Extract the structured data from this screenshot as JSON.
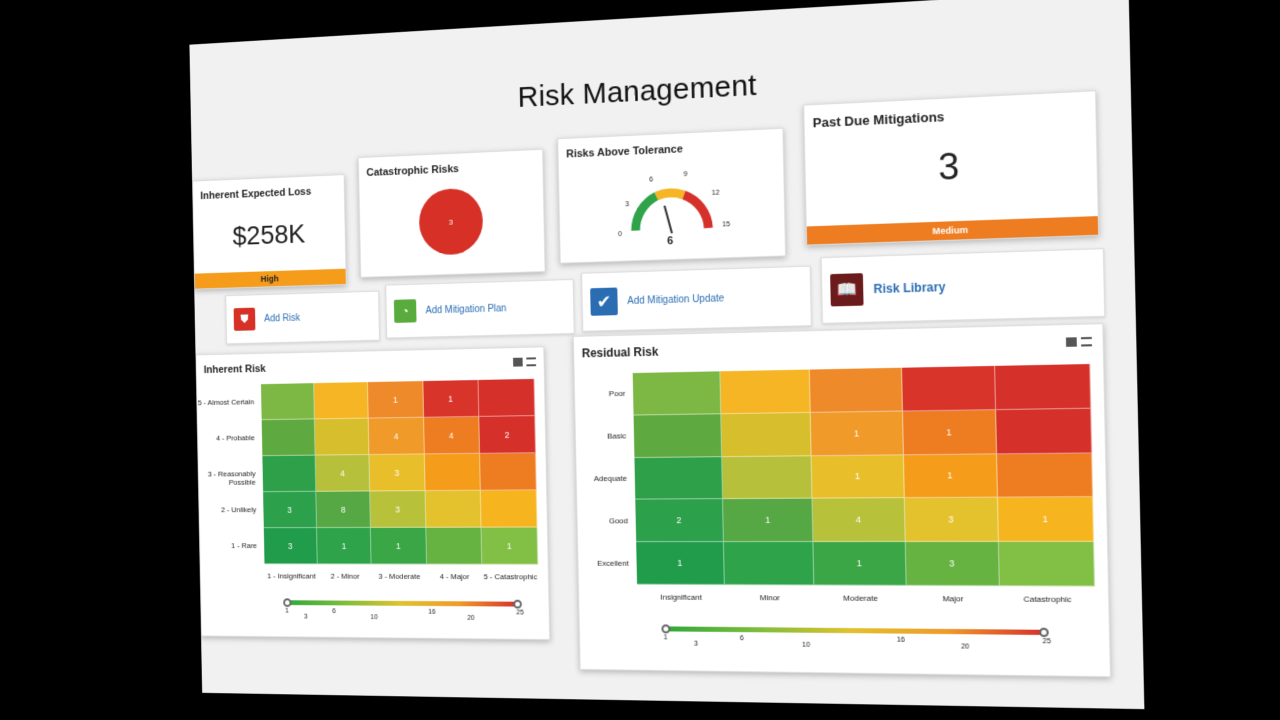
{
  "dashboard": {
    "title": "Risk Management"
  },
  "kpis": [
    {
      "title": "Inherent Expected Loss",
      "value": "$258K",
      "severity": "High",
      "severity_color": "#f59c1a"
    },
    {
      "title": "Catastrophic Risks",
      "value": "3",
      "donut_color": "#d63027"
    },
    {
      "title": "Risks Above Tolerance",
      "gauge_value": "6",
      "gauge_ticks": [
        "0",
        "3",
        "6",
        "9",
        "12",
        "15"
      ]
    },
    {
      "title": "Past Due Mitigations",
      "value": "3",
      "severity": "Medium",
      "severity_color": "#ee7d21"
    }
  ],
  "actions": [
    {
      "label": "Add Risk",
      "icon": "shield-icon",
      "color": "#d63027"
    },
    {
      "label": "Add Mitigation Plan",
      "icon": "gauge-icon",
      "color": "#5aab3d"
    },
    {
      "label": "Add Mitigation Update",
      "icon": "checkbox-icon",
      "color": "#2a6db3"
    },
    {
      "label": "Risk Library",
      "icon": "book-icon",
      "color": "#6b1b1b"
    }
  ],
  "inherent": {
    "title": "Inherent Risk",
    "rows": [
      "5 - Almost Certain",
      "4 - Probable",
      "3 - Reasonably Possible",
      "2 - Unlikely",
      "1 - Rare"
    ],
    "cols": [
      "1 - Insignificant",
      "2 - Minor",
      "3 - Moderate",
      "4 - Major",
      "5 - Catastrophic"
    ],
    "cells": [
      [
        "",
        "",
        "1",
        "1",
        ""
      ],
      [
        "",
        "",
        "4",
        "4",
        "2"
      ],
      [
        "",
        "4",
        "3",
        "",
        ""
      ],
      [
        "3",
        "8",
        "3",
        "",
        ""
      ],
      [
        "3",
        "1",
        "1",
        "",
        "1"
      ]
    ],
    "legend_ticks": [
      "1",
      "3",
      "6",
      "10",
      "16",
      "20",
      "25"
    ]
  },
  "residual": {
    "title": "Residual Risk",
    "rows": [
      "Poor",
      "Basic",
      "Adequate",
      "Good",
      "Excellent"
    ],
    "cols": [
      "Insignificant",
      "Minor",
      "Moderate",
      "Major",
      "Catastrophic"
    ],
    "cells": [
      [
        "",
        "",
        "",
        "",
        ""
      ],
      [
        "",
        "",
        "1",
        "1",
        ""
      ],
      [
        "",
        "",
        "1",
        "1",
        ""
      ],
      [
        "2",
        "1",
        "4",
        "3",
        "1"
      ],
      [
        "1",
        "",
        "1",
        "3",
        ""
      ]
    ],
    "legend_ticks": [
      "1",
      "3",
      "6",
      "10",
      "16",
      "20",
      "25"
    ]
  },
  "heat_colors": [
    [
      "#7db844",
      "#f5b524",
      "#ef8a2a",
      "#d9342a",
      "#d6302a"
    ],
    [
      "#5faa40",
      "#d6be2c",
      "#f09a2a",
      "#ee7d21",
      "#d6302a"
    ],
    [
      "#2ea04a",
      "#b6c03a",
      "#e8bf2b",
      "#f59c1a",
      "#ee7d21"
    ],
    [
      "#2ca04a",
      "#55a843",
      "#b7c23a",
      "#e4c22e",
      "#f6b51e"
    ],
    [
      "#219c4a",
      "#2ea34a",
      "#3aa645",
      "#66b342",
      "#82bf45"
    ]
  ]
}
